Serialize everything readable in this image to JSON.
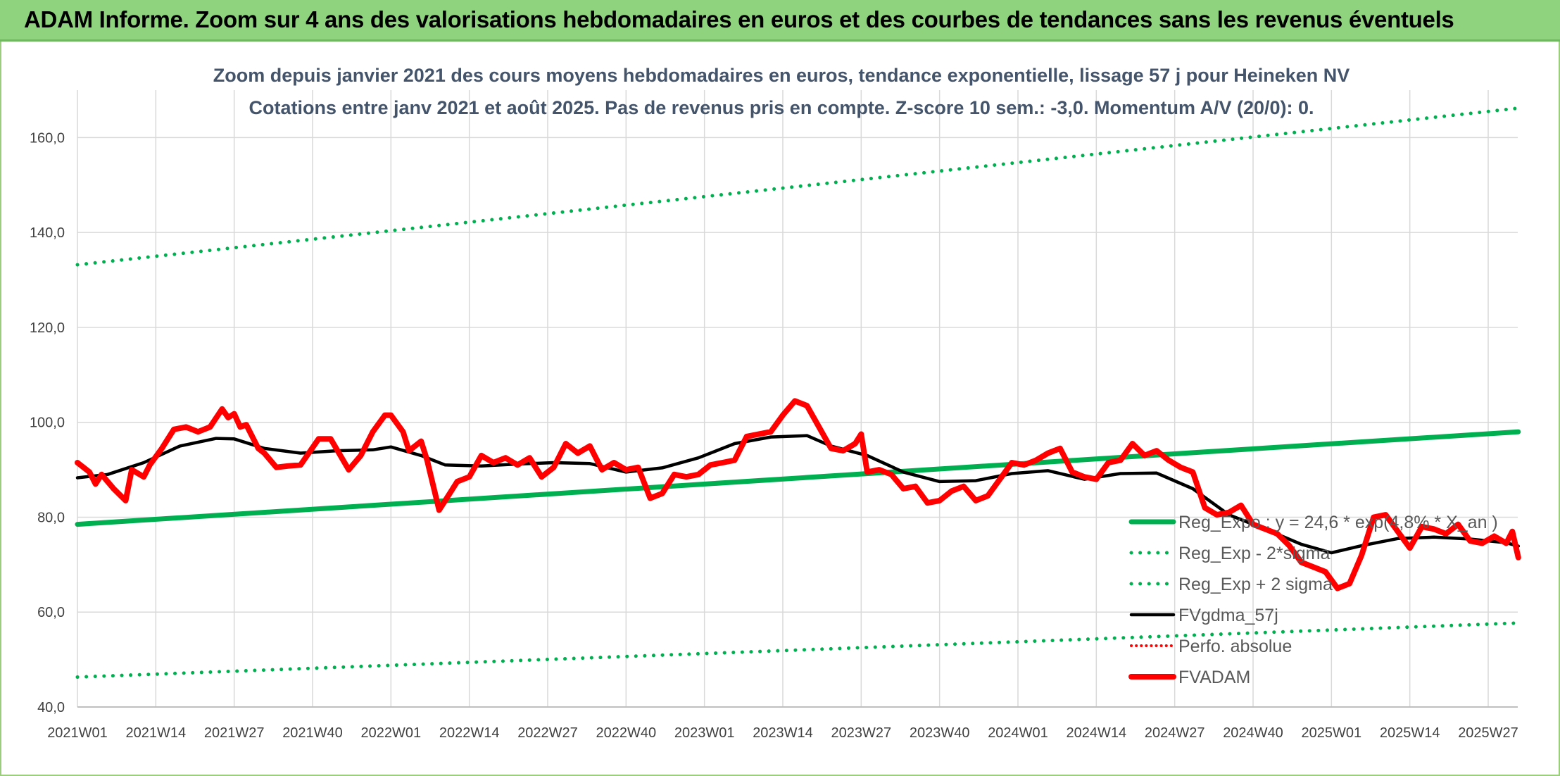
{
  "banner": {
    "title": "ADAM Informe. Zoom sur 4 ans des valorisations hebdomadaires en euros et des courbes de tendances sans les revenus éventuels"
  },
  "chart_data": {
    "type": "line",
    "title_lines": [
      "Zoom depuis janvier 2021 des cours moyens hebdomadaires en euros, tendance exponentielle, lissage 57 j pour Heineken NV",
      "Cotations entre janv 2021 et août 2025. Pas de revenus pris en compte. Z-score 10 sem.: -3,0. Momentum A/V (20/0): 0."
    ],
    "ylim": [
      40,
      170
    ],
    "yticks": [
      40,
      60,
      80,
      100,
      120,
      140,
      160
    ],
    "ytick_labels": [
      "40,0",
      "60,0",
      "80,0",
      "100,0",
      "120,0",
      "140,0",
      "160,0"
    ],
    "x_tick_labels": [
      "2021W01",
      "2021W14",
      "2021W27",
      "2021W40",
      "2022W01",
      "2022W14",
      "2022W27",
      "2022W40",
      "2023W01",
      "2023W14",
      "2023W27",
      "2023W40",
      "2024W01",
      "2024W14",
      "2024W27",
      "2024W40",
      "2025W01",
      "2025W14",
      "2025W27"
    ],
    "grid": true,
    "legend_position": "bottom-right",
    "colors": {
      "reg_exp": "#00b050",
      "fvgdma": "#000000",
      "perfo": "#ff0000",
      "fvadam": "#ff0000",
      "grid": "#d9d9d9",
      "axis_text": "#404040"
    },
    "series": [
      {
        "name": "Reg_Expo : y = 24,6 * exp(4,8% * X_an )",
        "style": "solid-thick",
        "x": [
          "2021W01",
          "2025W32"
        ],
        "y": [
          78.5,
          98.0
        ]
      },
      {
        "name": "Reg_Exp - 2*sigma",
        "style": "dotted",
        "x": [
          "2021W01",
          "2025W32"
        ],
        "y": [
          46.3,
          57.7
        ]
      },
      {
        "name": "Reg_Exp + 2 sigma",
        "style": "dotted",
        "x": [
          "2021W01",
          "2025W32"
        ],
        "y": [
          133.2,
          166.2
        ]
      },
      {
        "name": "FVgdma_57j",
        "style": "solid",
        "x": [
          "2021W01",
          "2021W06",
          "2021W12",
          "2021W18",
          "2021W24",
          "2021W27",
          "2021W32",
          "2021W38",
          "2021W44",
          "2021W50",
          "2022W01",
          "2022W06",
          "2022W10",
          "2022W16",
          "2022W22",
          "2022W28",
          "2022W34",
          "2022W40",
          "2022W46",
          "2022W52",
          "2023W06",
          "2023W12",
          "2023W18",
          "2023W22",
          "2023W28",
          "2023W34",
          "2023W40",
          "2023W46",
          "2023W52",
          "2024W06",
          "2024W12",
          "2024W18",
          "2024W24",
          "2024W30",
          "2024W36",
          "2024W42",
          "2024W48",
          "2025W01",
          "2025W06",
          "2025W12",
          "2025W18",
          "2025W24",
          "2025W30",
          "2025W32"
        ],
        "y": [
          88.3,
          89.0,
          91.5,
          95.0,
          96.6,
          96.5,
          94.5,
          93.5,
          94.0,
          94.2,
          94.8,
          93.0,
          91.0,
          90.8,
          91.2,
          91.5,
          91.3,
          89.5,
          90.4,
          92.5,
          95.5,
          96.9,
          97.2,
          95.0,
          93.0,
          89.5,
          87.5,
          87.7,
          89.2,
          89.8,
          88.0,
          89.2,
          89.3,
          86.0,
          80.5,
          77.5,
          74.3,
          72.5,
          74.0,
          75.5,
          75.8,
          75.4,
          74.6,
          73.9
        ]
      },
      {
        "name": "Perfo. absolue",
        "style": "dotted-thin",
        "x": [],
        "y": []
      },
      {
        "name": "FVADAM",
        "style": "solid-thick",
        "x": [
          "2021W01",
          "2021W03",
          "2021W04",
          "2021W05",
          "2021W07",
          "2021W09",
          "2021W10",
          "2021W12",
          "2021W13",
          "2021W15",
          "2021W17",
          "2021W19",
          "2021W21",
          "2021W23",
          "2021W25",
          "2021W26",
          "2021W27",
          "2021W28",
          "2021W29",
          "2021W31",
          "2021W32",
          "2021W34",
          "2021W36",
          "2021W38",
          "2021W41",
          "2021W43",
          "2021W46",
          "2021W48",
          "2021W50",
          "2021W52",
          "2022W01",
          "2022W03",
          "2022W04",
          "2022W06",
          "2022W07",
          "2022W09",
          "2022W11",
          "2022W12",
          "2022W14",
          "2022W16",
          "2022W18",
          "2022W20",
          "2022W22",
          "2022W24",
          "2022W26",
          "2022W28",
          "2022W30",
          "2022W32",
          "2022W34",
          "2022W36",
          "2022W38",
          "2022W40",
          "2022W42",
          "2022W44",
          "2022W46",
          "2022W48",
          "2022W50",
          "2022W52",
          "2023W02",
          "2023W04",
          "2023W06",
          "2023W08",
          "2023W10",
          "2023W12",
          "2023W14",
          "2023W16",
          "2023W18",
          "2023W20",
          "2023W22",
          "2023W24",
          "2023W26",
          "2023W27",
          "2023W28",
          "2023W30",
          "2023W32",
          "2023W34",
          "2023W36",
          "2023W38",
          "2023W40",
          "2023W42",
          "2023W44",
          "2023W46",
          "2023W48",
          "2023W50",
          "2023W52",
          "2024W02",
          "2024W04",
          "2024W06",
          "2024W08",
          "2024W10",
          "2024W12",
          "2024W14",
          "2024W16",
          "2024W18",
          "2024W20",
          "2024W22",
          "2024W24",
          "2024W26",
          "2024W28",
          "2024W30",
          "2024W32",
          "2024W34",
          "2024W36",
          "2024W38",
          "2024W40",
          "2024W42",
          "2024W44",
          "2024W46",
          "2024W48",
          "2024W50",
          "2024W52",
          "2025W02",
          "2025W04",
          "2025W06",
          "2025W08",
          "2025W10",
          "2025W12",
          "2025W14",
          "2025W16",
          "2025W18",
          "2025W20",
          "2025W22",
          "2025W24",
          "2025W26",
          "2025W28",
          "2025W30",
          "2025W31",
          "2025W32"
        ],
        "y": [
          91.5,
          89.5,
          87.0,
          89.0,
          86.0,
          83.5,
          90.0,
          88.5,
          91.0,
          94.5,
          98.5,
          99.0,
          98.0,
          99.0,
          102.8,
          101.0,
          101.8,
          99.0,
          99.5,
          94.5,
          93.5,
          90.5,
          90.8,
          91.0,
          96.5,
          96.5,
          90.0,
          93.0,
          98.0,
          101.5,
          101.5,
          98.0,
          94.0,
          96.0,
          92.0,
          81.5,
          85.5,
          87.5,
          88.5,
          93.0,
          91.5,
          92.5,
          91.0,
          92.5,
          88.5,
          90.5,
          95.5,
          93.5,
          95.0,
          90.0,
          91.5,
          90.0,
          90.5,
          84.0,
          85.0,
          89.0,
          88.5,
          89.0,
          91.0,
          91.5,
          92.0,
          97.0,
          97.5,
          98.0,
          101.5,
          104.5,
          103.5,
          99.0,
          94.5,
          94.0,
          95.5,
          97.5,
          89.5,
          90.0,
          89.0,
          86.0,
          86.5,
          83.0,
          83.5,
          85.5,
          86.5,
          83.5,
          84.5,
          88.0,
          91.5,
          91.0,
          92.0,
          93.5,
          94.5,
          89.5,
          88.5,
          88.0,
          91.5,
          92.0,
          95.5,
          93.0,
          94.0,
          92.0,
          90.5,
          89.5,
          82.0,
          80.5,
          81.0,
          82.5,
          78.5,
          77.5,
          76.5,
          74.0,
          70.5,
          69.5,
          68.5,
          65.0,
          66.0,
          72.0,
          80.0,
          80.5,
          77.0,
          73.5,
          78.0,
          77.5,
          76.5,
          78.5,
          75.0,
          74.5,
          76.0,
          74.5,
          77.0,
          71.5
        ]
      }
    ]
  }
}
